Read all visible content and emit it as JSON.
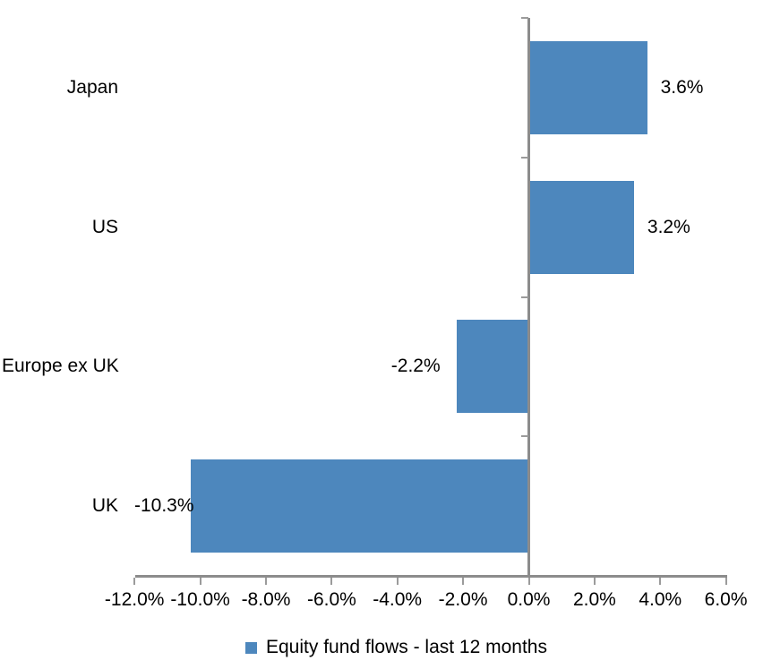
{
  "chart_data": {
    "type": "bar",
    "orientation": "horizontal",
    "title": "",
    "categories": [
      "Japan",
      "US",
      "Europe ex UK",
      "UK"
    ],
    "values": [
      3.6,
      3.2,
      -2.2,
      -10.3
    ],
    "value_labels": [
      "3.6%",
      "3.2%",
      "-2.2%",
      "-10.3%"
    ],
    "series_name": "Equity fund flows - last 12 months",
    "x_ticks": [
      "-12.0%",
      "-10.0%",
      "-8.0%",
      "-6.0%",
      "-4.0%",
      "-2.0%",
      "0.0%",
      "2.0%",
      "4.0%",
      "6.0%"
    ],
    "x_tick_values": [
      -12,
      -10,
      -8,
      -6,
      -4,
      -2,
      0,
      2,
      4,
      6
    ],
    "xlim": [
      -12,
      6
    ],
    "grid": false,
    "legend_position": "bottom",
    "data_label_position": "outside-end",
    "colors": {
      "bar": "#4D87BD",
      "axis": "#8C8C8C",
      "tick": "#9B9B9B",
      "text": "#000000",
      "background": "#FFFFFF"
    }
  },
  "legend": {
    "label": "Equity fund flows - last 12 months",
    "swatch_color": "#4D87BD"
  }
}
